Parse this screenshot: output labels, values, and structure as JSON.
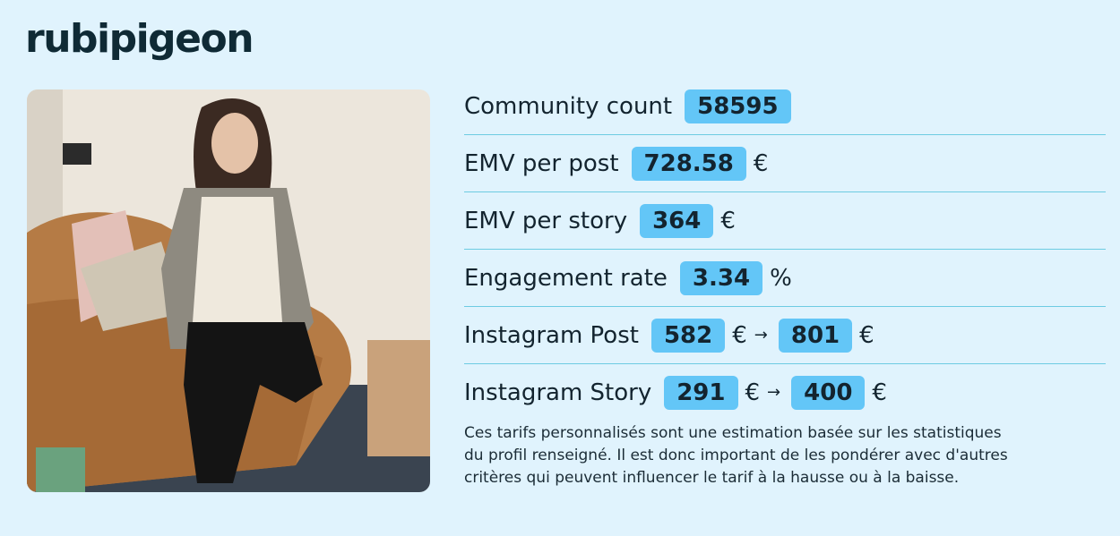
{
  "brand": "rubipigeon",
  "stats": [
    {
      "label": "Community count",
      "value": 58595
    },
    {
      "label": "EMV per post",
      "value": 728.58,
      "unit": "€"
    },
    {
      "label": "EMV per story",
      "value": 364,
      "unit": "€"
    },
    {
      "label": "Engagement rate",
      "value": 3.34,
      "unit": "%"
    },
    {
      "label": "Instagram Post",
      "value": 582,
      "unit": "€",
      "arrow": "→",
      "value_to": 801,
      "unit_to": "€"
    },
    {
      "label": "Instagram Story",
      "value": 291,
      "unit": "€",
      "arrow": "→",
      "value_to": 400,
      "unit_to": "€"
    }
  ],
  "note": [
    "Ces tarifs personnalisés sont une estimation basée sur les statistiques",
    "du profil renseigné. Il est donc important de les pondérer avec d'autres",
    "critères qui peuvent influencer le tarif à la hausse ou à la baisse."
  ]
}
